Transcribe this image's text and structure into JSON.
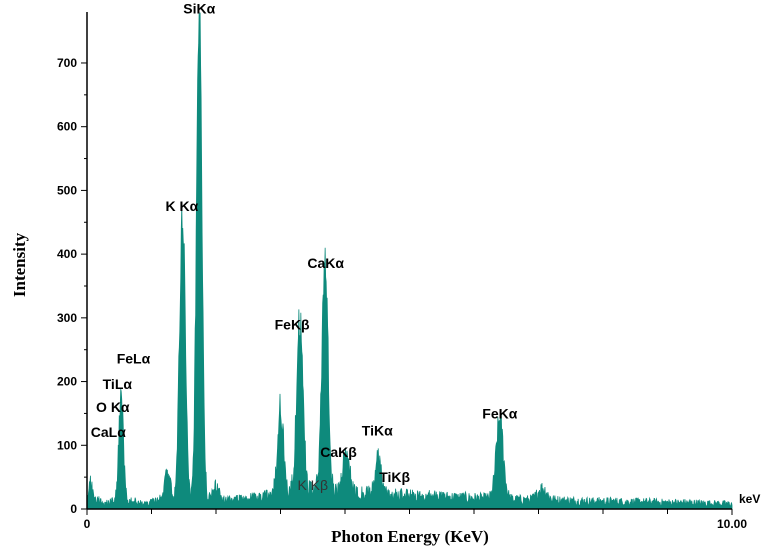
{
  "chart_data": {
    "type": "area",
    "title": "",
    "xlabel": "Photon Energy (KeV)",
    "ylabel": "Intensity",
    "x_unit": "keV",
    "xlim": [
      0,
      10
    ],
    "ylim": [
      0,
      780
    ],
    "x_tick_labels": [
      {
        "value": 0,
        "label": "0"
      },
      {
        "value": 10,
        "label": "10.00"
      }
    ],
    "x_minor_ticks": [
      1,
      2,
      3,
      4,
      5,
      6,
      7,
      8,
      9
    ],
    "y_ticks": [
      0,
      100,
      200,
      300,
      400,
      500,
      600,
      700
    ],
    "grid": false,
    "series_color": "#0e8a7c",
    "baseline": [
      [
        0.0,
        14
      ],
      [
        0.05,
        38
      ],
      [
        0.12,
        18
      ],
      [
        0.25,
        8
      ],
      [
        0.4,
        12
      ],
      [
        0.55,
        8
      ],
      [
        0.7,
        12
      ],
      [
        0.9,
        9
      ],
      [
        1.1,
        12
      ],
      [
        1.3,
        10
      ],
      [
        1.5,
        12
      ],
      [
        1.7,
        11
      ],
      [
        1.9,
        14
      ],
      [
        2.1,
        13
      ],
      [
        2.3,
        15
      ],
      [
        2.5,
        16
      ],
      [
        2.7,
        18
      ],
      [
        2.9,
        22
      ],
      [
        3.1,
        24
      ],
      [
        3.3,
        26
      ],
      [
        3.5,
        28
      ],
      [
        3.7,
        26
      ],
      [
        3.9,
        26
      ],
      [
        4.1,
        24
      ],
      [
        4.3,
        24
      ],
      [
        4.5,
        22
      ],
      [
        4.7,
        22
      ],
      [
        4.9,
        21
      ],
      [
        5.1,
        20
      ],
      [
        5.3,
        20
      ],
      [
        5.5,
        19
      ],
      [
        5.7,
        18
      ],
      [
        6.0,
        17
      ],
      [
        6.3,
        16
      ],
      [
        6.6,
        15
      ],
      [
        6.9,
        14
      ],
      [
        7.2,
        14
      ],
      [
        7.5,
        13
      ],
      [
        7.8,
        12
      ],
      [
        8.1,
        12
      ],
      [
        8.4,
        11
      ],
      [
        8.7,
        11
      ],
      [
        9.0,
        10
      ],
      [
        9.3,
        10
      ],
      [
        9.6,
        9
      ],
      [
        10.0,
        8
      ]
    ],
    "peaks": [
      {
        "center": 0.52,
        "height": 12,
        "width": 0.04
      },
      {
        "center": 0.53,
        "height": 155,
        "width": 0.035
      },
      {
        "center": 1.25,
        "height": 45,
        "width": 0.05
      },
      {
        "center": 1.48,
        "height": 450,
        "width": 0.045
      },
      {
        "center": 1.74,
        "height": 765,
        "width": 0.042
      },
      {
        "center": 2.0,
        "height": 20,
        "width": 0.05
      },
      {
        "center": 3.0,
        "height": 135,
        "width": 0.045
      },
      {
        "center": 3.3,
        "height": 268,
        "width": 0.05
      },
      {
        "center": 3.69,
        "height": 360,
        "width": 0.048
      },
      {
        "center": 4.02,
        "height": 70,
        "width": 0.05
      },
      {
        "center": 4.51,
        "height": 55,
        "width": 0.05
      },
      {
        "center": 6.4,
        "height": 125,
        "width": 0.055
      },
      {
        "center": 7.06,
        "height": 18,
        "width": 0.07
      }
    ],
    "annotations": [
      {
        "id": "sika",
        "text": "SiKα",
        "x": 1.74,
        "y": 778
      },
      {
        "id": "kka",
        "text": "K Kα",
        "x": 1.47,
        "y": 468
      },
      {
        "id": "caka",
        "text": "CaKα",
        "x": 3.7,
        "y": 378
      },
      {
        "id": "fekb",
        "text": "FeKβ",
        "x": 3.18,
        "y": 282
      },
      {
        "id": "fela",
        "text": "FeLα",
        "x": 0.72,
        "y": 228
      },
      {
        "id": "tila",
        "text": "TiLα",
        "x": 0.47,
        "y": 188
      },
      {
        "id": "oka",
        "text": "O Kα",
        "x": 0.4,
        "y": 152
      },
      {
        "id": "cala",
        "text": "CaLα",
        "x": 0.33,
        "y": 113
      },
      {
        "id": "tika",
        "text": "TiKα",
        "x": 4.5,
        "y": 115
      },
      {
        "id": "cakb",
        "text": "CaKβ",
        "x": 3.9,
        "y": 82
      },
      {
        "id": "kkb",
        "text": "K Kβ",
        "x": 3.5,
        "y": 30
      },
      {
        "id": "tikb",
        "text": "TiKβ",
        "x": 4.77,
        "y": 42
      },
      {
        "id": "feka",
        "text": "FeKα",
        "x": 6.4,
        "y": 142
      }
    ]
  }
}
